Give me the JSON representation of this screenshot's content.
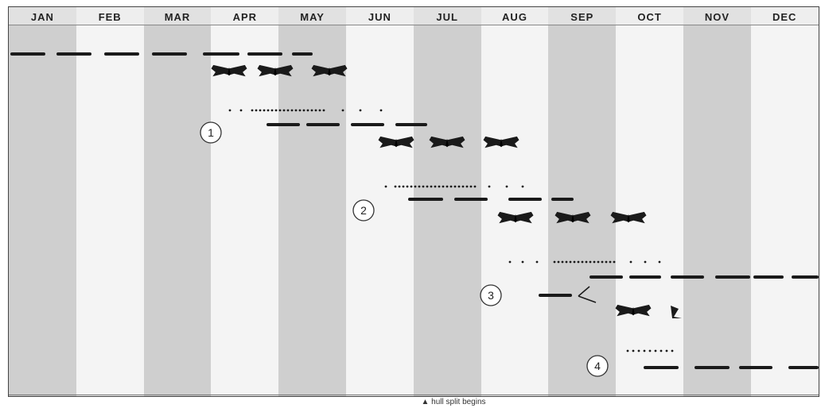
{
  "months": [
    "JAN",
    "FEB",
    "MAR",
    "APR",
    "MAY",
    "JUN",
    "JUL",
    "AUG",
    "SEP",
    "OCT",
    "NOV",
    "DEC"
  ],
  "generations": [
    "1",
    "2",
    "3",
    "4"
  ],
  "caption": "hull split begins",
  "caption_icon": "triangle-up-icon",
  "colors": {
    "shade": "#cfcfcf",
    "light": "#f4f4f4",
    "mark": "#1a1a1a"
  }
}
